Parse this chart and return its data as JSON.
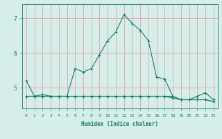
{
  "xlabel": "Humidex (Indice chaleur)",
  "x": [
    0,
    1,
    2,
    3,
    4,
    5,
    6,
    7,
    8,
    9,
    10,
    11,
    12,
    13,
    14,
    15,
    16,
    17,
    18,
    19,
    20,
    21,
    22,
    23
  ],
  "line1": [
    5.2,
    4.75,
    4.8,
    4.75,
    4.75,
    4.75,
    5.55,
    5.45,
    5.55,
    5.95,
    6.35,
    6.6,
    7.1,
    6.85,
    6.65,
    6.35,
    5.3,
    5.25,
    4.75,
    4.65,
    4.65,
    4.75,
    4.85,
    4.65
  ],
  "line2": [
    4.75,
    4.75,
    4.75,
    4.75,
    4.75,
    4.75,
    4.75,
    4.75,
    4.75,
    4.75,
    4.75,
    4.75,
    4.75,
    4.75,
    4.75,
    4.75,
    4.75,
    4.75,
    4.75,
    4.65,
    4.65,
    4.65,
    4.65,
    4.6
  ],
  "line3": [
    4.75,
    4.75,
    4.75,
    4.75,
    4.75,
    4.75,
    4.75,
    4.75,
    4.75,
    4.75,
    4.75,
    4.75,
    4.75,
    4.75,
    4.75,
    4.75,
    4.75,
    4.75,
    4.7,
    4.65,
    4.65,
    4.65,
    4.65,
    4.6
  ],
  "line_color": "#1a7a6e",
  "bg_color": "#d6eeea",
  "grid_color": "#e8a0a0",
  "yticks": [
    5,
    6,
    7
  ],
  "ylim": [
    4.4,
    7.4
  ],
  "xlim": [
    -0.5,
    23.5
  ],
  "marker": "+"
}
